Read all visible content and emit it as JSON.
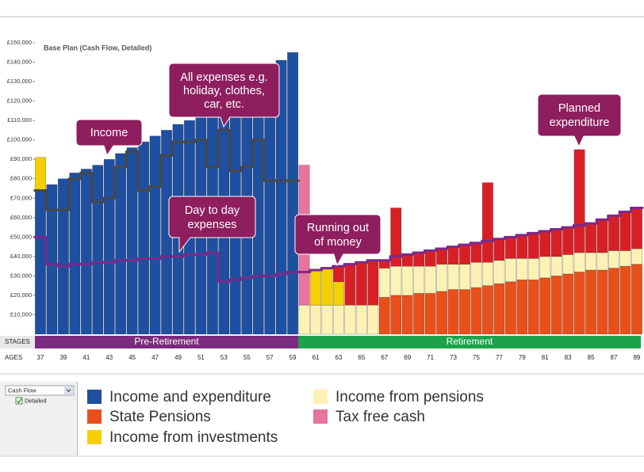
{
  "chart_data": {
    "type": "bar",
    "title": "Base Plan  (Cash Flow, Detailed)",
    "x_label": "AGES",
    "stages_label": "STAGES",
    "stages": [
      "Pre-Retirement",
      "Retirement"
    ],
    "categories": [
      "37",
      null,
      "39",
      null,
      "41",
      null,
      "43",
      null,
      "45",
      null,
      "47",
      null,
      "49",
      null,
      "51",
      null,
      "53",
      null,
      "55",
      null,
      "57",
      null,
      "59",
      null,
      "61",
      null,
      "63",
      null,
      "65",
      null,
      "67",
      null,
      "69",
      null,
      "71",
      null,
      "73",
      null,
      "75",
      null,
      "77",
      null,
      "79",
      null,
      "81",
      null,
      "83",
      null,
      "85",
      null,
      "87",
      null,
      "89"
    ],
    "ylim": [
      0,
      150000
    ],
    "yticks": [
      {
        "value": 10000,
        "label": "£10,000"
      },
      {
        "value": 20000,
        "label": "£20,000"
      },
      {
        "value": 30000,
        "label": "£30,000"
      },
      {
        "value": 40000,
        "label": "£40,000"
      },
      {
        "value": 50000,
        "label": "£50,000"
      },
      {
        "value": 60000,
        "label": "£60,000"
      },
      {
        "value": 70000,
        "label": "£70,000"
      },
      {
        "value": 80000,
        "label": "£80,000"
      },
      {
        "value": 90000,
        "label": "£90,000"
      },
      {
        "value": 100000,
        "label": "£100,000"
      },
      {
        "value": 110000,
        "label": "£110,000"
      },
      {
        "value": 120000,
        "label": "£120,000"
      },
      {
        "value": 130000,
        "label": "£130,000"
      },
      {
        "value": 140000,
        "label": "£140,000"
      },
      {
        "value": 150000,
        "label": "£150,000"
      }
    ],
    "stacked": true,
    "series": [
      {
        "name": "Income and expenditure",
        "color": "#1f4fa0",
        "values": [
          74000,
          77000,
          80000,
          83000,
          85000,
          87000,
          90000,
          93000,
          96000,
          99000,
          102000,
          105000,
          108000,
          110000,
          113000,
          116000,
          119000,
          122000,
          126000,
          130000,
          134000,
          141000,
          145000,
          null,
          null,
          null,
          null,
          null,
          null,
          null,
          null,
          null,
          null,
          null,
          null,
          null,
          null,
          null,
          null,
          null,
          null,
          null,
          null,
          null,
          null,
          null,
          null,
          null,
          null,
          null,
          null,
          null,
          null
        ]
      },
      {
        "name": "State Pensions",
        "color": "#e8501b",
        "values": [
          null,
          null,
          null,
          null,
          null,
          null,
          null,
          null,
          null,
          null,
          null,
          null,
          null,
          null,
          null,
          null,
          null,
          null,
          null,
          null,
          null,
          null,
          null,
          null,
          null,
          null,
          null,
          null,
          null,
          null,
          19000,
          20000,
          20000,
          21000,
          21000,
          22000,
          23000,
          23000,
          24000,
          25000,
          26000,
          27000,
          28000,
          28000,
          29000,
          30000,
          31000,
          32000,
          33000,
          33000,
          34000,
          35000,
          36000
        ]
      },
      {
        "name": "Income from pensions",
        "color": "#fcf2b6",
        "values": [
          null,
          null,
          null,
          null,
          null,
          null,
          null,
          null,
          null,
          null,
          null,
          null,
          null,
          null,
          null,
          null,
          null,
          null,
          null,
          null,
          null,
          null,
          null,
          15000,
          15000,
          15000,
          15000,
          15000,
          15000,
          15000,
          15000,
          15000,
          15000,
          14000,
          14000,
          14000,
          13000,
          13000,
          13000,
          12000,
          12000,
          12000,
          11000,
          11000,
          11000,
          10000,
          10000,
          10000,
          9000,
          9000,
          9000,
          8000,
          8000
        ]
      },
      {
        "name": "Income from investments",
        "color": "#f5d000",
        "values": [
          17000,
          null,
          null,
          null,
          null,
          null,
          null,
          null,
          null,
          null,
          null,
          null,
          null,
          null,
          null,
          null,
          null,
          null,
          null,
          null,
          null,
          null,
          null,
          null,
          18000,
          19000,
          12000,
          null,
          null,
          null,
          null,
          null,
          null,
          null,
          null,
          null,
          null,
          null,
          null,
          null,
          null,
          null,
          null,
          null,
          null,
          null,
          null,
          null,
          null,
          null,
          null,
          null,
          null
        ]
      },
      {
        "name": "Tax free cash",
        "color": "#e8739e",
        "values": [
          null,
          null,
          null,
          null,
          null,
          null,
          null,
          null,
          null,
          null,
          null,
          null,
          null,
          null,
          null,
          null,
          null,
          null,
          null,
          null,
          null,
          null,
          null,
          72000,
          null,
          null,
          null,
          null,
          null,
          null,
          null,
          null,
          null,
          null,
          null,
          null,
          null,
          null,
          null,
          null,
          null,
          null,
          null,
          null,
          null,
          null,
          null,
          null,
          null,
          null,
          null,
          null,
          null
        ]
      },
      {
        "color": "#d91f26",
        "values": [
          null,
          null,
          null,
          null,
          null,
          null,
          null,
          null,
          null,
          null,
          null,
          null,
          null,
          null,
          null,
          null,
          null,
          null,
          null,
          null,
          null,
          null,
          null,
          null,
          null,
          null,
          8000,
          21000,
          22000,
          23000,
          4000,
          30000,
          6000,
          7000,
          8000,
          8000,
          9000,
          10000,
          10000,
          41000,
          11000,
          11000,
          12000,
          13000,
          13000,
          14000,
          14000,
          53000,
          15000,
          17000,
          18000,
          20000,
          21000
        ]
      }
    ],
    "lines": [
      {
        "color": "#474747",
        "values": [
          74000,
          64000,
          64000,
          80000,
          83000,
          68000,
          70000,
          86000,
          94000,
          74000,
          76000,
          92000,
          99000,
          99000,
          100000,
          86000,
          105000,
          84000,
          86000,
          100000,
          79000,
          79000,
          79000,
          null,
          null,
          null,
          null,
          null,
          null,
          null,
          null,
          null,
          null,
          null,
          null,
          null,
          null,
          null,
          null,
          null,
          null,
          null,
          null,
          null,
          null,
          null,
          null,
          null,
          null,
          null,
          null,
          null,
          null
        ]
      },
      {
        "color": "#7b2a8a",
        "values": [
          50000,
          36000,
          35000,
          36000,
          36000,
          37000,
          37000,
          38000,
          38000,
          39000,
          39000,
          40000,
          40000,
          41000,
          41000,
          42000,
          27000,
          28000,
          29000,
          30000,
          30000,
          31000,
          32000,
          32000,
          33000,
          34000,
          35000,
          36000,
          37000,
          38000,
          38000,
          40000,
          41000,
          42000,
          43000,
          44000,
          45000,
          46000,
          47000,
          48000,
          49000,
          50000,
          51000,
          52000,
          53000,
          54000,
          55000,
          56000,
          57000,
          59000,
          61000,
          63000,
          65000
        ]
      }
    ],
    "annotations": [
      [
        "Income"
      ],
      [
        "All expenses e.g.",
        "holiday, clothes,",
        "car, etc."
      ],
      [
        "Day to day",
        "expenses"
      ],
      [
        "Running out",
        "of money"
      ],
      [
        "Planned",
        "expenditure"
      ]
    ]
  },
  "ui": {
    "dropdown": "Cash Flow",
    "checkbox": "Detailed"
  }
}
